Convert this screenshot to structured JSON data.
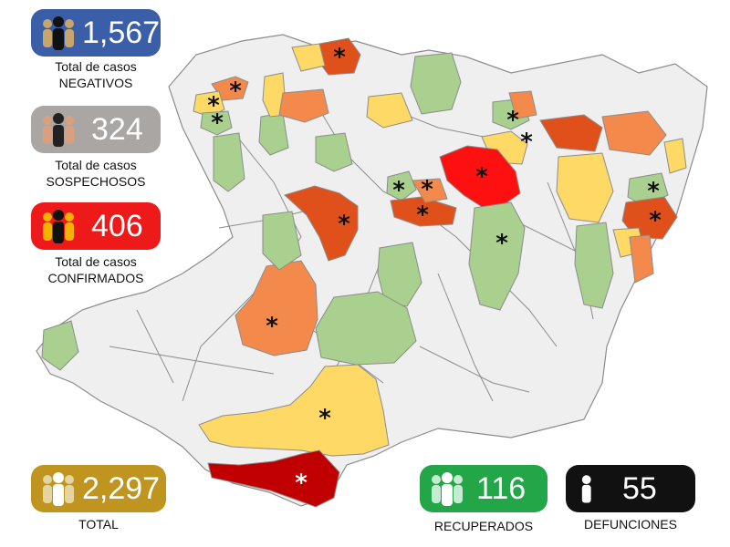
{
  "colors": {
    "negativos": "#3a5ea8",
    "sospechosos": "#a9a6a4",
    "confirmados": "#ee1a1a",
    "total": "#bf9520",
    "recuperados": "#23a648",
    "defunciones": "#111111",
    "low": "#a9d08e",
    "medium": "#ffd966",
    "high": "#f4894c",
    "very_high": "#e0501a",
    "max": "#ff1010",
    "coast": "#c00000",
    "none": "#efefef",
    "border": "#8c8c8c"
  },
  "stats": {
    "negativos": {
      "value": "1,567",
      "line1": "Total de casos",
      "line2": "NEGATIVOS",
      "icon": "people-icon"
    },
    "sospechosos": {
      "value": "324",
      "line1": "Total de casos",
      "line2": "SOSPECHOSOS",
      "icon": "people-icon"
    },
    "confirmados": {
      "value": "406",
      "line1": "Total de casos",
      "line2": "CONFIRMADOS",
      "icon": "people-icon"
    },
    "total": {
      "value": "2,297",
      "label": "TOTAL",
      "icon": "people-icon"
    },
    "recuperados": {
      "value": "116",
      "label": "RECUPERADOS",
      "icon": "people-icon"
    },
    "defunciones": {
      "value": "55",
      "label": "DEFUNCIONES",
      "icon": "person-icon"
    }
  },
  "map": {
    "marker": "*",
    "regions": [
      {
        "id": "nw-1",
        "level": "high",
        "marker": true
      },
      {
        "id": "nw-2",
        "level": "medium",
        "marker": true
      },
      {
        "id": "nw-3",
        "level": "low",
        "marker": true
      },
      {
        "id": "north-1",
        "level": "very_high",
        "marker": true
      },
      {
        "id": "north-2",
        "level": "medium",
        "marker": false
      },
      {
        "id": "north-3",
        "level": "low",
        "marker": false
      },
      {
        "id": "ne-1",
        "level": "low",
        "marker": true
      },
      {
        "id": "ne-2",
        "level": "medium",
        "marker": true
      },
      {
        "id": "ne-3",
        "level": "very_high",
        "marker": false
      },
      {
        "id": "ne-4",
        "level": "high",
        "marker": false
      },
      {
        "id": "center-max",
        "level": "max",
        "marker": true
      },
      {
        "id": "center-1",
        "level": "very_high",
        "marker": true
      },
      {
        "id": "center-2",
        "level": "low",
        "marker": true
      },
      {
        "id": "center-3",
        "level": "very_high",
        "marker": true
      },
      {
        "id": "center-4",
        "level": "high",
        "marker": true
      },
      {
        "id": "east-1",
        "level": "low",
        "marker": true
      },
      {
        "id": "east-2",
        "level": "very_high",
        "marker": true
      },
      {
        "id": "east-3",
        "level": "medium",
        "marker": false
      },
      {
        "id": "mid-1",
        "level": "low",
        "marker": true
      },
      {
        "id": "west-1",
        "level": "high",
        "marker": true
      },
      {
        "id": "south-1",
        "level": "medium",
        "marker": true
      },
      {
        "id": "coast-1",
        "level": "coast",
        "marker": true
      }
    ]
  }
}
